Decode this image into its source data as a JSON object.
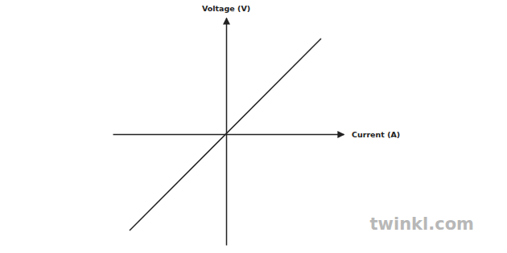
{
  "chart_data": {
    "type": "line",
    "x_label": "Current (A)",
    "y_label": "Voltage (V)",
    "x": [
      -1.2,
      1.18
    ],
    "values": [
      -1.2,
      1.19
    ],
    "color": "#222222",
    "xlim": [
      -1.41,
      1.46
    ],
    "ylim": [
      -1.38,
      1.45
    ],
    "tick_labels": false,
    "grid": false,
    "annotations": [
      "twinkl.com"
    ]
  }
}
